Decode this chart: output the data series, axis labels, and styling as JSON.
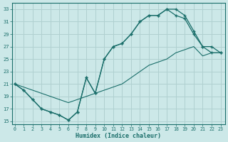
{
  "xlabel": "Humidex (Indice chaleur)",
  "bg_color": "#cce8e8",
  "grid_color": "#b0d0d0",
  "line_color": "#1a6e6a",
  "xlim": [
    -0.3,
    23.5
  ],
  "ylim": [
    14.5,
    34
  ],
  "xticks": [
    0,
    1,
    2,
    3,
    4,
    5,
    6,
    7,
    8,
    9,
    10,
    11,
    12,
    13,
    14,
    15,
    16,
    17,
    18,
    19,
    20,
    21,
    22,
    23
  ],
  "yticks": [
    15,
    17,
    19,
    21,
    23,
    25,
    27,
    29,
    31,
    33
  ],
  "line1_x": [
    0,
    1,
    2,
    3,
    4,
    5,
    6,
    7,
    8,
    9,
    10,
    11,
    12,
    13,
    14,
    15,
    16,
    17,
    18,
    19,
    20,
    21,
    22,
    23
  ],
  "line1_y": [
    21,
    20,
    18.5,
    17,
    16.5,
    16,
    15.2,
    16.5,
    22,
    19.5,
    25,
    27,
    27.5,
    29,
    31,
    32,
    32,
    33,
    32,
    31.5,
    29,
    27,
    27,
    26
  ],
  "line2_x": [
    0,
    1,
    2,
    3,
    4,
    5,
    6,
    7,
    8,
    9,
    10,
    11,
    12,
    13,
    14,
    15,
    16,
    17,
    18,
    19,
    20,
    21,
    22,
    23
  ],
  "line2_y": [
    21,
    20,
    18.5,
    17,
    16.5,
    16,
    15.2,
    16.5,
    22,
    19.5,
    25,
    27,
    27.5,
    29,
    31,
    32,
    32,
    33,
    33,
    32,
    29.5,
    27,
    26,
    26
  ],
  "line3_x": [
    0,
    1,
    2,
    3,
    4,
    5,
    6,
    7,
    8,
    9,
    10,
    11,
    12,
    13,
    14,
    15,
    16,
    17,
    18,
    19,
    20,
    21,
    22,
    23
  ],
  "line3_y": [
    21,
    20.5,
    20,
    19.5,
    19,
    18.5,
    18,
    18.5,
    19,
    19.5,
    20,
    20.5,
    21,
    22,
    23,
    24,
    24.5,
    25,
    26,
    26.5,
    27,
    25.5,
    26,
    26
  ]
}
